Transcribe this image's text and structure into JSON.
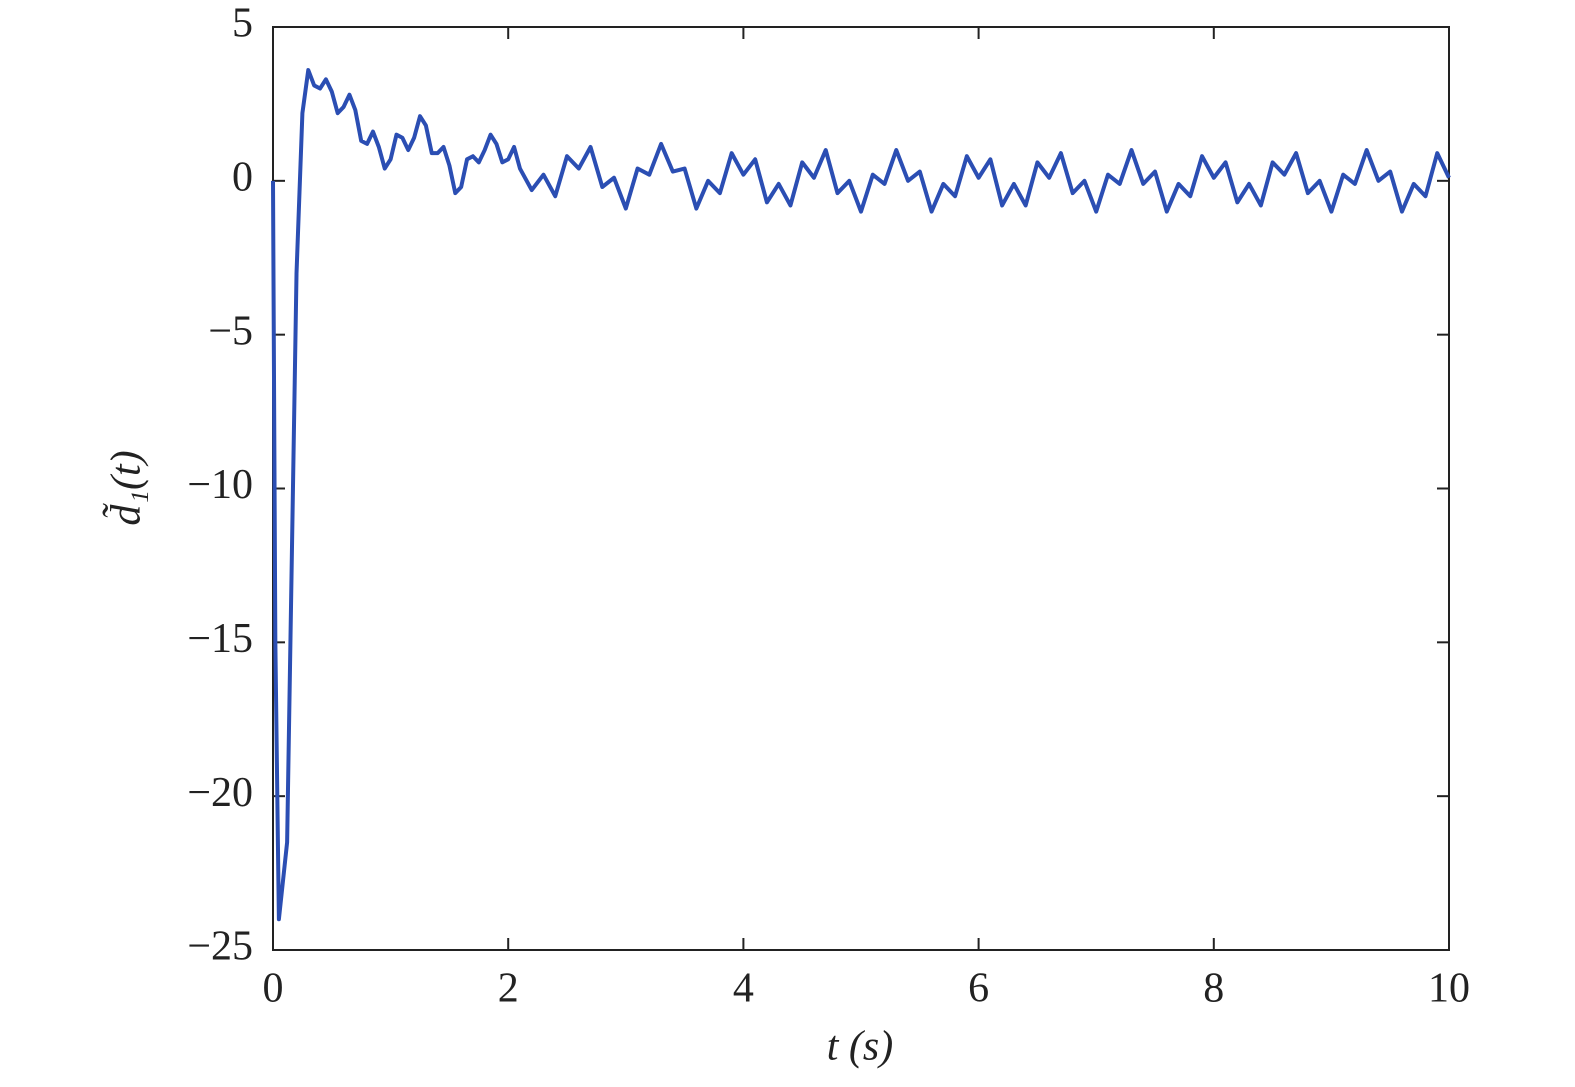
{
  "chart_data": {
    "type": "line",
    "xlabel": "t (s)",
    "ylabel": "d̃₁(t)",
    "color": "#2b4eb3",
    "x": [
      0,
      0.02,
      0.05,
      0.12,
      0.2,
      0.25,
      0.3,
      0.35,
      0.4,
      0.45,
      0.5,
      0.55,
      0.6,
      0.65,
      0.7,
      0.75,
      0.8,
      0.85,
      0.9,
      0.95,
      1.0,
      1.05,
      1.1,
      1.15,
      1.2,
      1.25,
      1.3,
      1.35,
      1.4,
      1.45,
      1.5,
      1.55,
      1.6,
      1.65,
      1.7,
      1.75,
      1.8,
      1.85,
      1.9,
      1.95,
      2.0,
      2.05,
      2.1,
      2.2,
      2.3,
      2.4,
      2.5,
      2.6,
      2.7,
      2.8,
      2.9,
      3.0,
      3.1,
      3.2,
      3.3,
      3.4,
      3.5,
      3.6,
      3.7,
      3.8,
      3.9,
      4.0,
      4.1,
      4.2,
      4.3,
      4.4,
      4.5,
      4.6,
      4.7,
      4.8,
      4.9,
      5.0,
      5.1,
      5.2,
      5.3,
      5.4,
      5.5,
      5.6,
      5.7,
      5.8,
      5.9,
      6.0,
      6.1,
      6.2,
      6.3,
      6.4,
      6.5,
      6.6,
      6.7,
      6.8,
      6.9,
      7.0,
      7.1,
      7.2,
      7.3,
      7.4,
      7.5,
      7.6,
      7.7,
      7.8,
      7.9,
      8.0,
      8.1,
      8.2,
      8.3,
      8.4,
      8.5,
      8.6,
      8.7,
      8.8,
      8.9,
      9.0,
      9.1,
      9.2,
      9.3,
      9.4,
      9.5,
      9.6,
      9.7,
      9.8,
      9.9,
      10.0
    ],
    "values": [
      0,
      -15,
      -24,
      -21.5,
      -3,
      2.2,
      3.6,
      3.1,
      3.0,
      3.3,
      2.9,
      2.2,
      2.4,
      2.8,
      2.3,
      1.3,
      1.2,
      1.6,
      1.1,
      0.4,
      0.7,
      1.5,
      1.4,
      1.0,
      1.4,
      2.1,
      1.8,
      0.9,
      0.9,
      1.1,
      0.5,
      -0.4,
      -0.2,
      0.7,
      0.8,
      0.6,
      1.0,
      1.5,
      1.2,
      0.6,
      0.7,
      1.1,
      0.4,
      -0.3,
      0.2,
      -0.5,
      0.8,
      0.4,
      1.1,
      -0.2,
      0.1,
      -0.9,
      0.4,
      0.2,
      1.2,
      0.3,
      0.4,
      -0.9,
      0.0,
      -0.4,
      0.9,
      0.2,
      0.7,
      -0.7,
      -0.1,
      -0.8,
      0.6,
      0.1,
      1.0,
      -0.4,
      0.0,
      -1.0,
      0.2,
      -0.1,
      1.0,
      0.0,
      0.3,
      -1.0,
      -0.1,
      -0.5,
      0.8,
      0.1,
      0.7,
      -0.8,
      -0.1,
      -0.8,
      0.6,
      0.1,
      0.9,
      -0.4,
      0.0,
      -1.0,
      0.2,
      -0.1,
      1.0,
      -0.1,
      0.3,
      -1.0,
      -0.1,
      -0.5,
      0.8,
      0.1,
      0.6,
      -0.7,
      -0.1,
      -0.8,
      0.6,
      0.2,
      0.9,
      -0.4,
      0.0,
      -1.0,
      0.2,
      -0.1,
      1.0,
      0.0,
      0.3,
      -1.0,
      -0.1,
      -0.5,
      0.9,
      0.1
    ],
    "xlim": [
      0,
      10
    ],
    "xticks": [
      0,
      2,
      4,
      6,
      8,
      10
    ],
    "ylim": [
      -25,
      5
    ],
    "yticks": [
      {
        "value": -25,
        "label": "−25"
      },
      {
        "value": -20,
        "label": "−20"
      },
      {
        "value": -15,
        "label": "−15"
      },
      {
        "value": -10,
        "label": "−10"
      },
      {
        "value": -5,
        "label": "−5"
      },
      0,
      5
    ],
    "grid": false
  }
}
